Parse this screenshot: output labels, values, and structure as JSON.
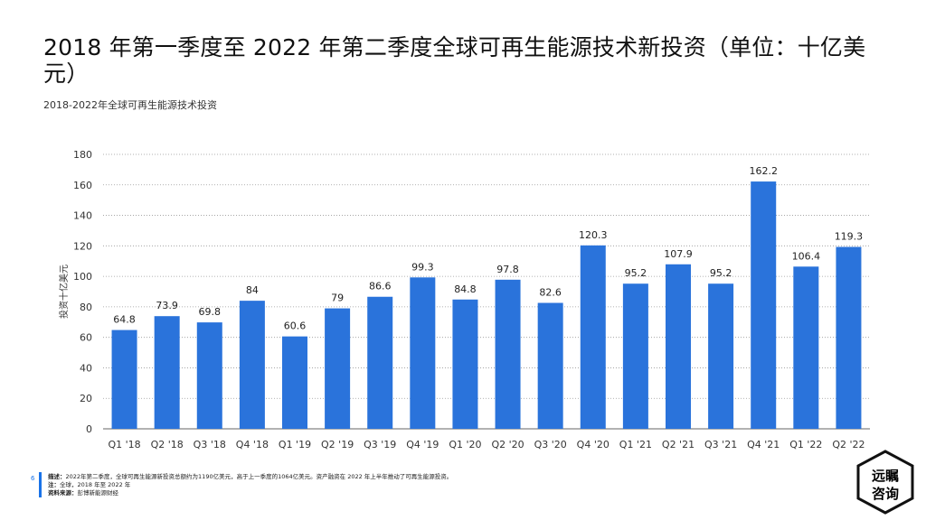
{
  "title": "2018 年第一季度至 2022 年第二季度全球可再生能源技术新投资（单位：十亿美元）",
  "subtitle": "2018-2022年全球可再生能源技术投资",
  "footer": {
    "page_number": "6",
    "description_label": "描述：",
    "description": "2022年第二季度，全球可再生能源新投资总额约为1190亿美元，高于上一季度的1064亿美元。资产融资在 2022 年上半年推动了可再生能源投资。",
    "note_label": "注：",
    "note": "全球，2018 年至 2022 年",
    "source_label": "资料来源：",
    "source": "彭博新能源财经"
  },
  "logo": {
    "line1": "远瞩",
    "line2": "咨询"
  },
  "colors": {
    "bar": "#2a73db",
    "grid": "#999999",
    "text": "#333333"
  },
  "chart_data": {
    "type": "bar",
    "title": "",
    "xlabel": "",
    "ylabel": "投资十亿美元",
    "ylim": [
      0,
      180
    ],
    "yticks": [
      0,
      20,
      40,
      60,
      80,
      100,
      120,
      140,
      160,
      180
    ],
    "grid": true,
    "categories": [
      "Q1 '18",
      "Q2 '18",
      "Q3 '18",
      "Q4 '18",
      "Q1 '19",
      "Q2 '19",
      "Q3 '19",
      "Q4 '19",
      "Q1 '20",
      "Q2 '20",
      "Q3 '20",
      "Q4 '20",
      "Q1 '21",
      "Q2 '21",
      "Q3 '21",
      "Q4 '21",
      "Q1 '22",
      "Q2 '22"
    ],
    "values": [
      64.8,
      73.9,
      69.8,
      84,
      60.6,
      79,
      86.6,
      99.3,
      84.8,
      97.8,
      82.6,
      120.3,
      95.2,
      107.9,
      95.2,
      162.2,
      106.4,
      119.3
    ],
    "value_labels": [
      "64.8",
      "73.9",
      "69.8",
      "84",
      "60.6",
      "79",
      "86.6",
      "99.3",
      "84.8",
      "97.8",
      "82.6",
      "120.3",
      "95.2",
      "107.9",
      "95.2",
      "162.2",
      "106.4",
      "119.3"
    ]
  }
}
